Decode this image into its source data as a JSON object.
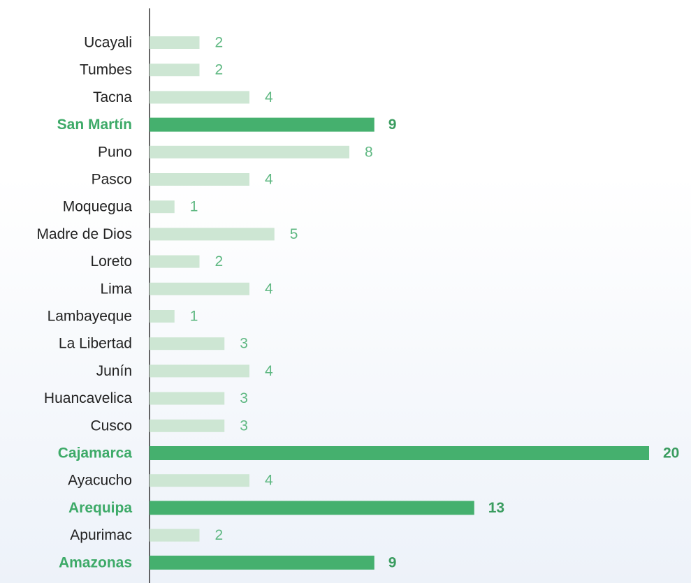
{
  "chart_data": {
    "type": "hbar",
    "categories": [
      "Ucayali",
      "Tumbes",
      "Tacna",
      "San Martín",
      "Puno",
      "Pasco",
      "Moquegua",
      "Madre de Dios",
      "Loreto",
      "Lima",
      "Lambayeque",
      "La Libertad",
      "Junín",
      "Huancavelica",
      "Cusco",
      "Cajamarca",
      "Ayacucho",
      "Arequipa",
      "Apurimac",
      "Amazonas"
    ],
    "values": [
      2,
      2,
      4,
      9,
      8,
      4,
      1,
      5,
      2,
      4,
      1,
      3,
      4,
      3,
      3,
      20,
      4,
      13,
      2,
      9
    ],
    "highlighted": [
      false,
      false,
      false,
      true,
      false,
      false,
      false,
      false,
      false,
      false,
      false,
      false,
      false,
      false,
      false,
      true,
      false,
      true,
      false,
      true
    ],
    "color": "#cde6d3",
    "highlight_color": "#45b06e",
    "xlim": [
      0,
      20
    ]
  }
}
